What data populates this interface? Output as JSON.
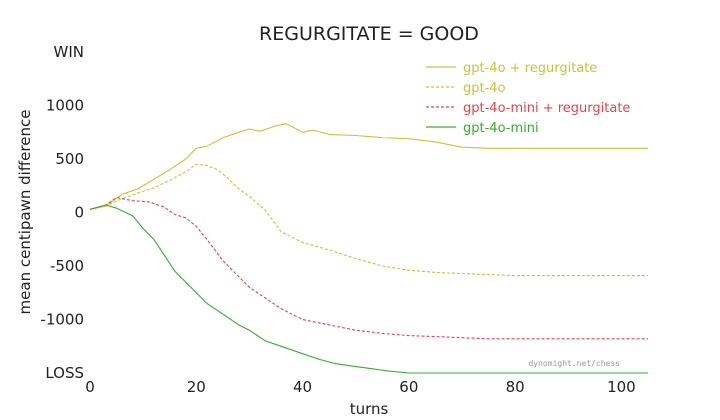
{
  "chart_data": {
    "type": "line",
    "title": "REGURGITATE = GOOD",
    "xlabel": "turns",
    "ylabel": "mean centipawn difference",
    "xlim": [
      0,
      105
    ],
    "ylim": [
      -1500,
      1500
    ],
    "x_ticks": [
      0,
      20,
      40,
      60,
      80,
      100
    ],
    "y_ticks": [
      {
        "value": 1500,
        "label": "WIN"
      },
      {
        "value": 1000,
        "label": "1000"
      },
      {
        "value": 500,
        "label": "500"
      },
      {
        "value": 0,
        "label": "0"
      },
      {
        "value": -500,
        "label": "-500"
      },
      {
        "value": -1000,
        "label": "-1000"
      },
      {
        "value": -1500,
        "label": "LOSS"
      }
    ],
    "grid": false,
    "legend_position": "top-right",
    "annotation": "dynomight.net/chess",
    "series": [
      {
        "name": "gpt-4o + regurgitate",
        "color": "#c8c43a",
        "dash": "solid",
        "x": [
          0,
          3,
          6,
          9,
          12,
          15,
          18,
          20,
          22,
          25,
          28,
          30,
          32,
          35,
          37,
          40,
          42,
          45,
          50,
          55,
          60,
          65,
          70,
          75,
          80,
          85,
          90,
          95,
          100,
          105
        ],
        "y": [
          30,
          60,
          170,
          220,
          310,
          400,
          500,
          600,
          620,
          700,
          750,
          780,
          760,
          810,
          830,
          750,
          770,
          730,
          720,
          700,
          690,
          660,
          610,
          600,
          600,
          600,
          600,
          600,
          600,
          600
        ]
      },
      {
        "name": "gpt-4o",
        "color": "#c8c43a",
        "dash": "dashed",
        "x": [
          0,
          3,
          6,
          9,
          12,
          15,
          18,
          20,
          22,
          24,
          26,
          28,
          30,
          33,
          36,
          40,
          45,
          50,
          55,
          60,
          65,
          70,
          75,
          80,
          85,
          90,
          95,
          100,
          105
        ],
        "y": [
          30,
          60,
          130,
          180,
          230,
          300,
          380,
          450,
          440,
          400,
          320,
          220,
          150,
          20,
          -180,
          -280,
          -350,
          -430,
          -500,
          -540,
          -560,
          -570,
          -580,
          -590,
          -590,
          -590,
          -590,
          -590,
          -590
        ]
      },
      {
        "name": "gpt-4o-mini + regurgitate",
        "color": "#e0474c",
        "dash": "dashed",
        "x": [
          0,
          3,
          5,
          8,
          11,
          14,
          16,
          18,
          20,
          22,
          25,
          28,
          30,
          33,
          36,
          40,
          45,
          50,
          55,
          60,
          65,
          70,
          75,
          80,
          85,
          90,
          95,
          100,
          105
        ],
        "y": [
          30,
          70,
          140,
          110,
          100,
          50,
          -20,
          -50,
          -130,
          -250,
          -450,
          -600,
          -700,
          -800,
          -900,
          -1000,
          -1050,
          -1100,
          -1130,
          -1150,
          -1160,
          -1170,
          -1180,
          -1180,
          -1180,
          -1180,
          -1180,
          -1180,
          -1180
        ]
      },
      {
        "name": "gpt-4o-mini",
        "color": "#3aaa35",
        "dash": "solid",
        "x": [
          0,
          3,
          5,
          8,
          10,
          12,
          14,
          16,
          18,
          20,
          22,
          25,
          28,
          30,
          33,
          36,
          40,
          43,
          46,
          50,
          53,
          56,
          60,
          65,
          70,
          75,
          80,
          85,
          90,
          95,
          100,
          105
        ],
        "y": [
          30,
          70,
          40,
          -30,
          -150,
          -250,
          -400,
          -550,
          -650,
          -750,
          -850,
          -950,
          -1050,
          -1100,
          -1200,
          -1250,
          -1320,
          -1370,
          -1410,
          -1440,
          -1460,
          -1480,
          -1500,
          -1500,
          -1500,
          -1500,
          -1500,
          -1500,
          -1500,
          -1500,
          -1500,
          -1500
        ]
      }
    ]
  }
}
